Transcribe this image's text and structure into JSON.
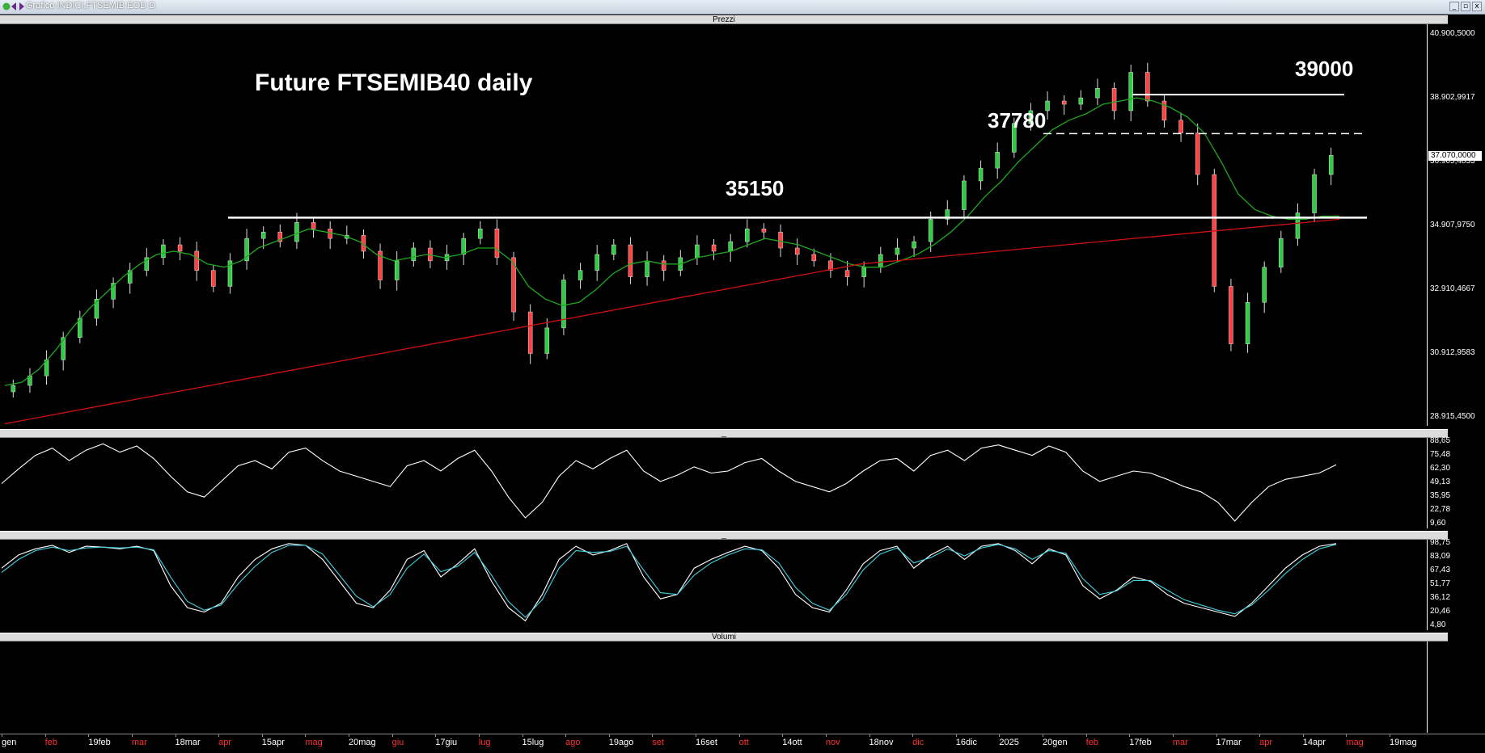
{
  "window": {
    "title": "Grafico INDICI.FTSEMIB EOD D"
  },
  "panels": {
    "prices": "Prezzi",
    "oscillator1": "_",
    "oscillator2": "_",
    "volumes": "Volumi"
  },
  "chart_data": [
    {
      "type": "line",
      "panel": "Prezzi",
      "title": "Future FTSEMIB40 daily",
      "y_ticks": [
        "40.900,5000",
        "38.902,9917",
        "36.905,4833",
        "34.907,9750",
        "32.910,4667",
        "30.912,9583",
        "28.915,4500"
      ],
      "ylim": [
        28915.45,
        40900.5
      ],
      "current_price": "37.070,0000",
      "levels": [
        {
          "label": "39000",
          "value": 39000,
          "style": "solid"
        },
        {
          "label": "37780",
          "value": 37780,
          "style": "dashed"
        },
        {
          "label": "35150",
          "value": 35150,
          "style": "solid"
        }
      ],
      "series": [
        {
          "description": "candlesticks",
          "values": [
            29900,
            30200,
            30700,
            31400,
            32000,
            32600,
            33100,
            33500,
            33900,
            34300,
            34100,
            33500,
            33000,
            33800,
            34500,
            34700,
            34400,
            35000,
            34800,
            34500,
            34600,
            34100,
            33200,
            33800,
            34200,
            33800,
            34000,
            34500,
            34800,
            33900,
            32200,
            30900,
            31700,
            33200,
            33500,
            34000,
            34300,
            33300,
            33800,
            33500,
            33900,
            34300,
            34100,
            34400,
            34800,
            34700,
            34200,
            34000,
            33800,
            33500,
            33300,
            33600,
            34000,
            34200,
            34400,
            35100,
            35400,
            36300,
            36700,
            37200,
            38100,
            38500,
            38800,
            38700,
            38900,
            39200,
            38500,
            39700,
            38800,
            38200,
            37800,
            36500,
            33000,
            31200,
            32500,
            33600,
            34500,
            35300,
            36500,
            37100
          ],
          "color": "#2ecc40"
        },
        {
          "description": "short moving average",
          "values": [
            29900,
            30000,
            30400,
            31000,
            31700,
            32300,
            32800,
            33300,
            33700,
            34000,
            34100,
            34000,
            33700,
            33600,
            33800,
            34200,
            34400,
            34600,
            34800,
            34700,
            34600,
            34400,
            34000,
            33800,
            33900,
            34000,
            33900,
            34000,
            34200,
            34200,
            33800,
            33000,
            32600,
            32400,
            32500,
            32900,
            33400,
            33700,
            33800,
            33700,
            33700,
            33900,
            34000,
            34100,
            34300,
            34500,
            34400,
            34300,
            34100,
            33900,
            33700,
            33600,
            33600,
            33800,
            34000,
            34300,
            34700,
            35200,
            35800,
            36300,
            36900,
            37400,
            37900,
            38200,
            38400,
            38700,
            38800,
            38900,
            38800,
            38600,
            38300,
            37800,
            36900,
            35900,
            35400,
            35200,
            35100,
            35100,
            35200,
            35200
          ],
          "color": "#1fa81f"
        },
        {
          "description": "long moving average",
          "values": [
            28700,
            28900,
            29100,
            29300,
            29500,
            29700,
            29900,
            30100,
            30300,
            30500,
            30700,
            30900,
            31100,
            31300,
            31500,
            31700,
            31900,
            32100,
            32300,
            32500,
            32700,
            32900,
            33100,
            33300,
            33500,
            33700,
            33800,
            33900,
            34000,
            34100,
            34200,
            34300,
            34400,
            34500,
            34600,
            34700,
            34800,
            34900,
            35000,
            35100
          ],
          "color": "#d01010"
        }
      ]
    },
    {
      "type": "line",
      "panel": "oscillator 1",
      "y_ticks": [
        "88,65",
        "75,48",
        "62,30",
        "49,13",
        "35,95",
        "22,78",
        "9,60"
      ],
      "ylim": [
        9.6,
        88.65
      ],
      "series": [
        {
          "description": "oscillator",
          "values": [
            48,
            62,
            75,
            82,
            70,
            80,
            86,
            78,
            84,
            72,
            55,
            40,
            35,
            50,
            65,
            70,
            62,
            78,
            82,
            70,
            60,
            55,
            50,
            45,
            65,
            70,
            60,
            72,
            80,
            60,
            35,
            15,
            30,
            55,
            70,
            62,
            72,
            80,
            60,
            50,
            56,
            64,
            58,
            60,
            68,
            72,
            60,
            50,
            45,
            40,
            48,
            60,
            70,
            72,
            60,
            75,
            80,
            70,
            82,
            85,
            80,
            75,
            84,
            78,
            60,
            50,
            55,
            60,
            58,
            52,
            45,
            40,
            30,
            12,
            30,
            45,
            52,
            55,
            58,
            66
          ],
          "color": "#ffffff"
        }
      ]
    },
    {
      "type": "line",
      "panel": "oscillator 2",
      "y_ticks": [
        "98,75",
        "83,09",
        "67,43",
        "51,77",
        "36,12",
        "20,46",
        "4,80"
      ],
      "ylim": [
        4.8,
        98.75
      ],
      "series": [
        {
          "description": "%K",
          "values": [
            70,
            85,
            92,
            96,
            88,
            95,
            94,
            92,
            95,
            90,
            50,
            25,
            20,
            30,
            60,
            80,
            92,
            98,
            96,
            80,
            55,
            30,
            25,
            45,
            80,
            90,
            60,
            75,
            92,
            55,
            25,
            10,
            40,
            80,
            95,
            85,
            90,
            98,
            60,
            35,
            40,
            70,
            80,
            88,
            95,
            90,
            70,
            40,
            25,
            20,
            45,
            75,
            90,
            95,
            70,
            85,
            95,
            80,
            95,
            98,
            90,
            75,
            92,
            85,
            50,
            35,
            45,
            60,
            55,
            40,
            30,
            25,
            20,
            15,
            30,
            50,
            70,
            85,
            95,
            98
          ],
          "color": "#ffffff"
        },
        {
          "description": "%D",
          "values": [
            65,
            80,
            90,
            94,
            90,
            93,
            94,
            93,
            94,
            91,
            60,
            32,
            22,
            28,
            52,
            72,
            88,
            96,
            96,
            86,
            62,
            38,
            26,
            40,
            70,
            86,
            66,
            72,
            88,
            62,
            32,
            14,
            34,
            70,
            90,
            88,
            89,
            95,
            68,
            42,
            40,
            62,
            76,
            85,
            92,
            91,
            76,
            48,
            30,
            22,
            40,
            68,
            86,
            93,
            76,
            82,
            92,
            84,
            93,
            97,
            92,
            80,
            90,
            87,
            58,
            40,
            44,
            56,
            56,
            45,
            34,
            28,
            22,
            18,
            28,
            45,
            64,
            80,
            92,
            97
          ],
          "color": "#40d0e0"
        }
      ]
    },
    {
      "type": "bar",
      "panel": "Volumi",
      "values": []
    }
  ],
  "x_axis": {
    "labels": [
      {
        "text": "gen",
        "color": "#ffffff"
      },
      {
        "text": "feb",
        "color": "#ff3030"
      },
      {
        "text": "19feb",
        "color": "#ffffff"
      },
      {
        "text": "mar",
        "color": "#ff3030"
      },
      {
        "text": "18mar",
        "color": "#ffffff"
      },
      {
        "text": "apr",
        "color": "#ff3030"
      },
      {
        "text": "15apr",
        "color": "#ffffff"
      },
      {
        "text": "mag",
        "color": "#ff3030"
      },
      {
        "text": "20mag",
        "color": "#ffffff"
      },
      {
        "text": "giu",
        "color": "#ff3030"
      },
      {
        "text": "17giu",
        "color": "#ffffff"
      },
      {
        "text": "lug",
        "color": "#ff3030"
      },
      {
        "text": "15lug",
        "color": "#ffffff"
      },
      {
        "text": "ago",
        "color": "#ff3030"
      },
      {
        "text": "19ago",
        "color": "#ffffff"
      },
      {
        "text": "set",
        "color": "#ff3030"
      },
      {
        "text": "16set",
        "color": "#ffffff"
      },
      {
        "text": "ott",
        "color": "#ff3030"
      },
      {
        "text": "14ott",
        "color": "#ffffff"
      },
      {
        "text": "nov",
        "color": "#ff3030"
      },
      {
        "text": "18nov",
        "color": "#ffffff"
      },
      {
        "text": "dic",
        "color": "#ff3030"
      },
      {
        "text": "16dic",
        "color": "#ffffff"
      },
      {
        "text": "2025",
        "color": "#ffffff"
      },
      {
        "text": "20gen",
        "color": "#ffffff"
      },
      {
        "text": "feb",
        "color": "#ff3030"
      },
      {
        "text": "17feb",
        "color": "#ffffff"
      },
      {
        "text": "mar",
        "color": "#ff3030"
      },
      {
        "text": "17mar",
        "color": "#ffffff"
      },
      {
        "text": "apr",
        "color": "#ff3030"
      },
      {
        "text": "14apr",
        "color": "#ffffff"
      },
      {
        "text": "mag",
        "color": "#ff3030"
      },
      {
        "text": "19mag",
        "color": "#ffffff"
      }
    ]
  },
  "colors": {
    "background": "#000000",
    "bull": "#2ecc40",
    "bear": "#ff4040",
    "wick": "#dddddd"
  }
}
